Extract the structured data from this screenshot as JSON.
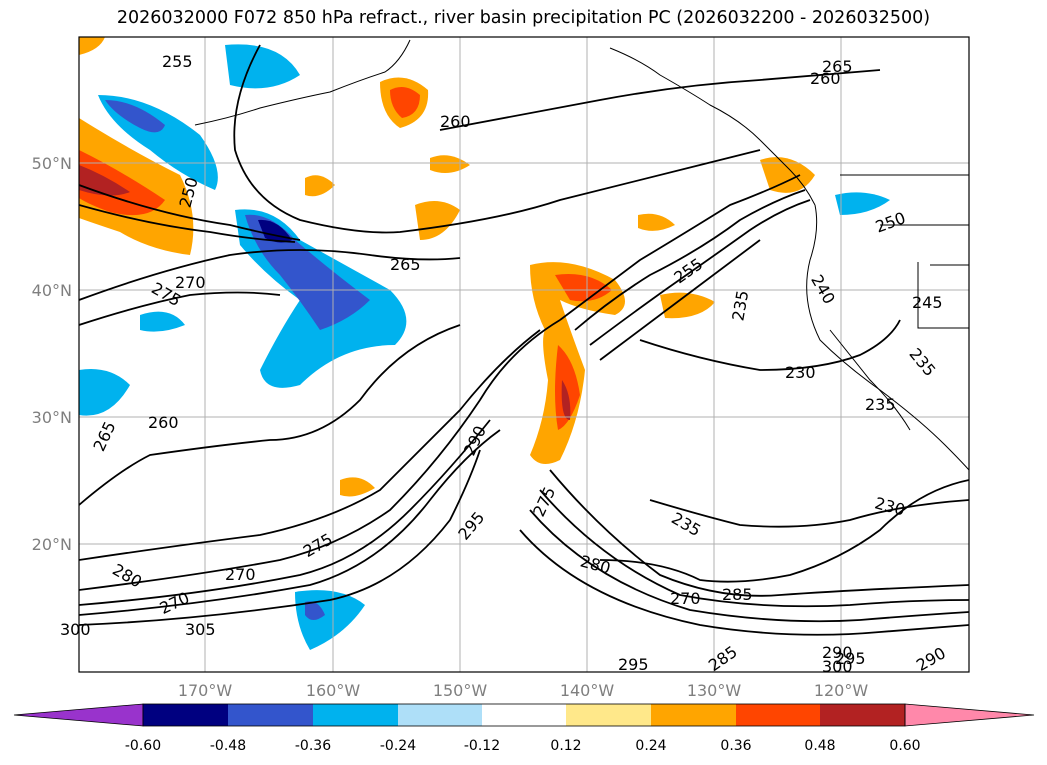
{
  "title": "2026032000 F072 850 hPa refract., river basin precipitation PC (2026032200 - 2026032500)",
  "map": {
    "lon_labels": [
      "170°W",
      "160°W",
      "150°W",
      "140°W",
      "130°W",
      "120°W"
    ],
    "lat_labels": [
      "50°N",
      "40°N",
      "30°N",
      "20°N"
    ],
    "contour_labels": [
      "255",
      "260",
      "265",
      "260",
      "250",
      "265",
      "270",
      "275",
      "260",
      "265",
      "255",
      "250",
      "235",
      "230",
      "240",
      "245",
      "235",
      "235",
      "230",
      "290",
      "275",
      "295",
      "235",
      "280",
      "275",
      "270",
      "270",
      "280",
      "270",
      "285",
      "285",
      "295",
      "305",
      "300",
      "290",
      "295",
      "300",
      "290"
    ]
  },
  "colorbar": {
    "ticks": [
      "-0.60",
      "-0.48",
      "-0.36",
      "-0.24",
      "-0.12",
      "0.12",
      "0.24",
      "0.36",
      "0.48",
      "0.60"
    ],
    "colors": [
      "#9933cc",
      "#000080",
      "#3355cc",
      "#00b2ee",
      "#aedff8",
      "#ffffff",
      "#ffe88a",
      "#ffa500",
      "#ff4500",
      "#b22222",
      "#ff88aa"
    ]
  }
}
